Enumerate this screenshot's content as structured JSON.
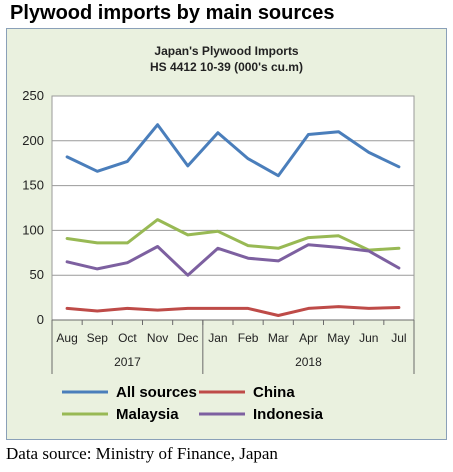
{
  "heading": "Plywood imports by main sources",
  "source": "Data source: Ministry of Finance, Japan",
  "chart_data": {
    "type": "line",
    "title": "Japan's Plywood Imports",
    "subtitle": "HS 4412 10-39  (000's cu.m)",
    "categories": [
      "Aug",
      "Sep",
      "Oct",
      "Nov",
      "Dec",
      "Jan",
      "Feb",
      "Mar",
      "Apr",
      "May",
      "Jun",
      "Jul"
    ],
    "year_groups": [
      {
        "label": "2017",
        "from": 0,
        "to": 4
      },
      {
        "label": "2018",
        "from": 5,
        "to": 11
      }
    ],
    "ylim": [
      0,
      250
    ],
    "yticks": [
      0,
      50,
      100,
      150,
      200,
      250
    ],
    "grid": true,
    "legend_position": "bottom",
    "series": [
      {
        "name": "All sources",
        "color": "#4a7ebb",
        "values": [
          182,
          166,
          177,
          218,
          172,
          209,
          180,
          161,
          207,
          210,
          187,
          171
        ]
      },
      {
        "name": "China",
        "color": "#be4b48",
        "values": [
          13,
          10,
          13,
          11,
          13,
          13,
          13,
          5,
          13,
          15,
          13,
          14
        ]
      },
      {
        "name": "Malaysia",
        "color": "#98b954",
        "values": [
          91,
          86,
          86,
          112,
          95,
          99,
          83,
          80,
          92,
          94,
          78,
          80
        ]
      },
      {
        "name": "Indonesia",
        "color": "#7d60a0",
        "values": [
          65,
          57,
          64,
          82,
          50,
          80,
          69,
          66,
          84,
          81,
          77,
          58
        ]
      }
    ]
  }
}
